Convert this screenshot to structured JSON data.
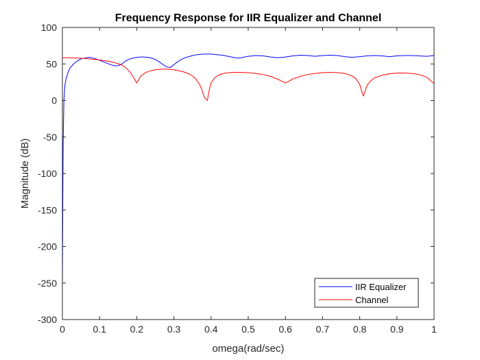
{
  "chart_data": {
    "type": "line",
    "title": "Frequency Response for IIR Equalizer and Channel",
    "xlabel": "omega(rad/sec)",
    "ylabel": "Magnitude (dB)",
    "xlim": [
      0,
      1
    ],
    "ylim": [
      -300,
      100
    ],
    "xticks": [
      0,
      0.1,
      0.2,
      0.3,
      0.4,
      0.5,
      0.6,
      0.7,
      0.8,
      0.9,
      1
    ],
    "xtick_labels": [
      "0",
      "0.1",
      "0.2",
      "0.3",
      "0.4",
      "0.5",
      "0.6",
      "0.7",
      "0.8",
      "0.9",
      "1"
    ],
    "yticks": [
      -300,
      -250,
      -200,
      -150,
      -100,
      -50,
      0,
      50,
      100
    ],
    "ytick_labels": [
      "-300",
      "-250",
      "-200",
      "-150",
      "-100",
      "-50",
      "0",
      "50",
      "100"
    ],
    "grid": false,
    "legend_position": "bottom-right",
    "series": [
      {
        "name": "IIR Equalizer",
        "color": "#0000ff",
        "x": [
          0,
          0.001,
          0.002,
          0.004,
          0.007,
          0.01,
          0.015,
          0.02,
          0.03,
          0.04,
          0.05,
          0.06,
          0.07,
          0.08,
          0.09,
          0.1,
          0.11,
          0.12,
          0.13,
          0.14,
          0.15,
          0.16,
          0.17,
          0.18,
          0.19,
          0.2,
          0.21,
          0.22,
          0.23,
          0.24,
          0.25,
          0.26,
          0.27,
          0.28,
          0.29,
          0.3,
          0.31,
          0.32,
          0.33,
          0.34,
          0.35,
          0.36,
          0.37,
          0.38,
          0.39,
          0.4,
          0.41,
          0.42,
          0.43,
          0.44,
          0.45,
          0.46,
          0.47,
          0.48,
          0.49,
          0.5,
          0.52,
          0.54,
          0.56,
          0.58,
          0.6,
          0.62,
          0.64,
          0.66,
          0.68,
          0.7,
          0.72,
          0.74,
          0.76,
          0.78,
          0.8,
          0.82,
          0.84,
          0.86,
          0.88,
          0.9,
          0.92,
          0.94,
          0.96,
          0.98,
          1
        ],
        "y": [
          -258,
          -150,
          -60,
          0,
          22,
          30,
          38,
          44,
          50,
          54,
          57,
          58,
          59,
          58.5,
          57,
          55,
          53,
          51,
          49,
          47.5,
          47.5,
          50,
          54,
          56.5,
          58,
          59,
          59.5,
          59.5,
          59,
          58,
          56,
          53,
          49.5,
          46,
          45,
          49,
          53,
          56,
          58.5,
          60,
          61.5,
          62.5,
          63,
          63.5,
          63.5,
          63.5,
          63,
          62.5,
          62,
          61,
          60,
          59,
          58,
          58.5,
          59.5,
          60.5,
          61.5,
          61,
          59.5,
          58.5,
          59.5,
          61,
          62,
          61.5,
          60.5,
          61.5,
          62,
          61.5,
          60,
          59,
          60,
          61,
          61.5,
          61,
          60,
          61,
          61.5,
          61.5,
          61,
          60.5,
          61.5
        ]
      },
      {
        "name": "Channel",
        "color": "#ff0000",
        "x": [
          0,
          0.02,
          0.04,
          0.06,
          0.08,
          0.1,
          0.12,
          0.14,
          0.16,
          0.17,
          0.18,
          0.19,
          0.195,
          0.2,
          0.205,
          0.21,
          0.22,
          0.23,
          0.24,
          0.25,
          0.26,
          0.27,
          0.28,
          0.29,
          0.3,
          0.31,
          0.32,
          0.33,
          0.34,
          0.35,
          0.36,
          0.37,
          0.375,
          0.38,
          0.385,
          0.39,
          0.395,
          0.4,
          0.41,
          0.42,
          0.43,
          0.44,
          0.45,
          0.46,
          0.48,
          0.5,
          0.52,
          0.54,
          0.56,
          0.58,
          0.59,
          0.6,
          0.61,
          0.62,
          0.64,
          0.66,
          0.68,
          0.7,
          0.72,
          0.74,
          0.76,
          0.78,
          0.79,
          0.8,
          0.805,
          0.81,
          0.815,
          0.82,
          0.83,
          0.84,
          0.86,
          0.88,
          0.9,
          0.92,
          0.94,
          0.96,
          0.98,
          1
        ],
        "y": [
          58.5,
          58.5,
          58,
          57.5,
          56.5,
          55.5,
          54,
          52,
          48.5,
          45,
          40,
          33,
          28,
          24,
          28,
          33,
          37,
          39.5,
          41,
          42,
          42.5,
          43,
          43,
          42.5,
          42,
          41,
          40,
          38.5,
          36.5,
          33.5,
          29,
          21,
          15,
          7,
          2,
          0,
          14,
          24,
          31,
          34.5,
          36.5,
          37.5,
          38,
          38.5,
          38.5,
          38,
          37,
          35.5,
          33,
          29,
          26.5,
          24,
          26.5,
          29.5,
          33,
          35.5,
          37,
          38,
          38.5,
          38,
          37,
          33.5,
          29.5,
          22,
          13,
          6,
          14,
          21,
          27,
          31,
          34.5,
          36.5,
          37.5,
          37.5,
          37,
          35.5,
          32,
          23
        ]
      }
    ]
  }
}
